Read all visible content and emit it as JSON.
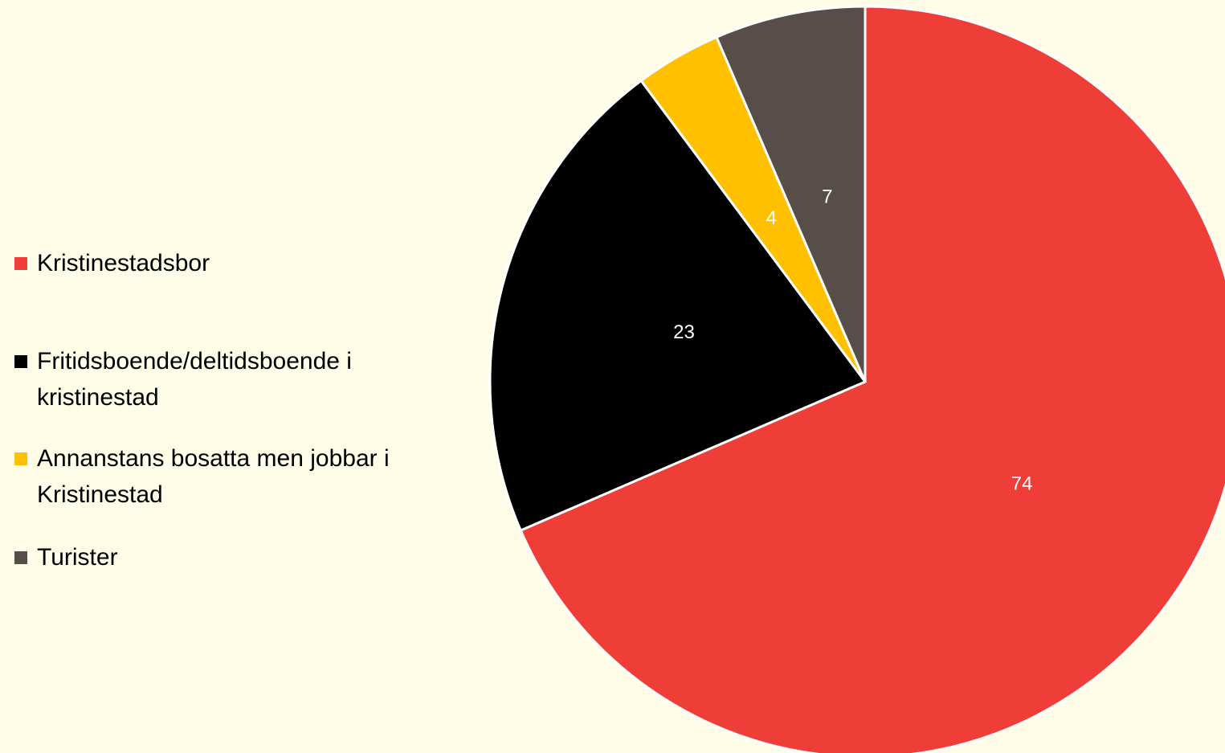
{
  "chart_data": {
    "type": "pie",
    "categories": [
      "Kristinestadsbor",
      "Fritidsboende/deltidsboende i kristinestad",
      "Annanstans bosatta men jobbar i Kristinestad",
      "Turister"
    ],
    "values": [
      74,
      23,
      4,
      7
    ],
    "colors": [
      "#ef3e38",
      "#000000",
      "#ffc000",
      "#574e49"
    ],
    "legend": "left"
  }
}
